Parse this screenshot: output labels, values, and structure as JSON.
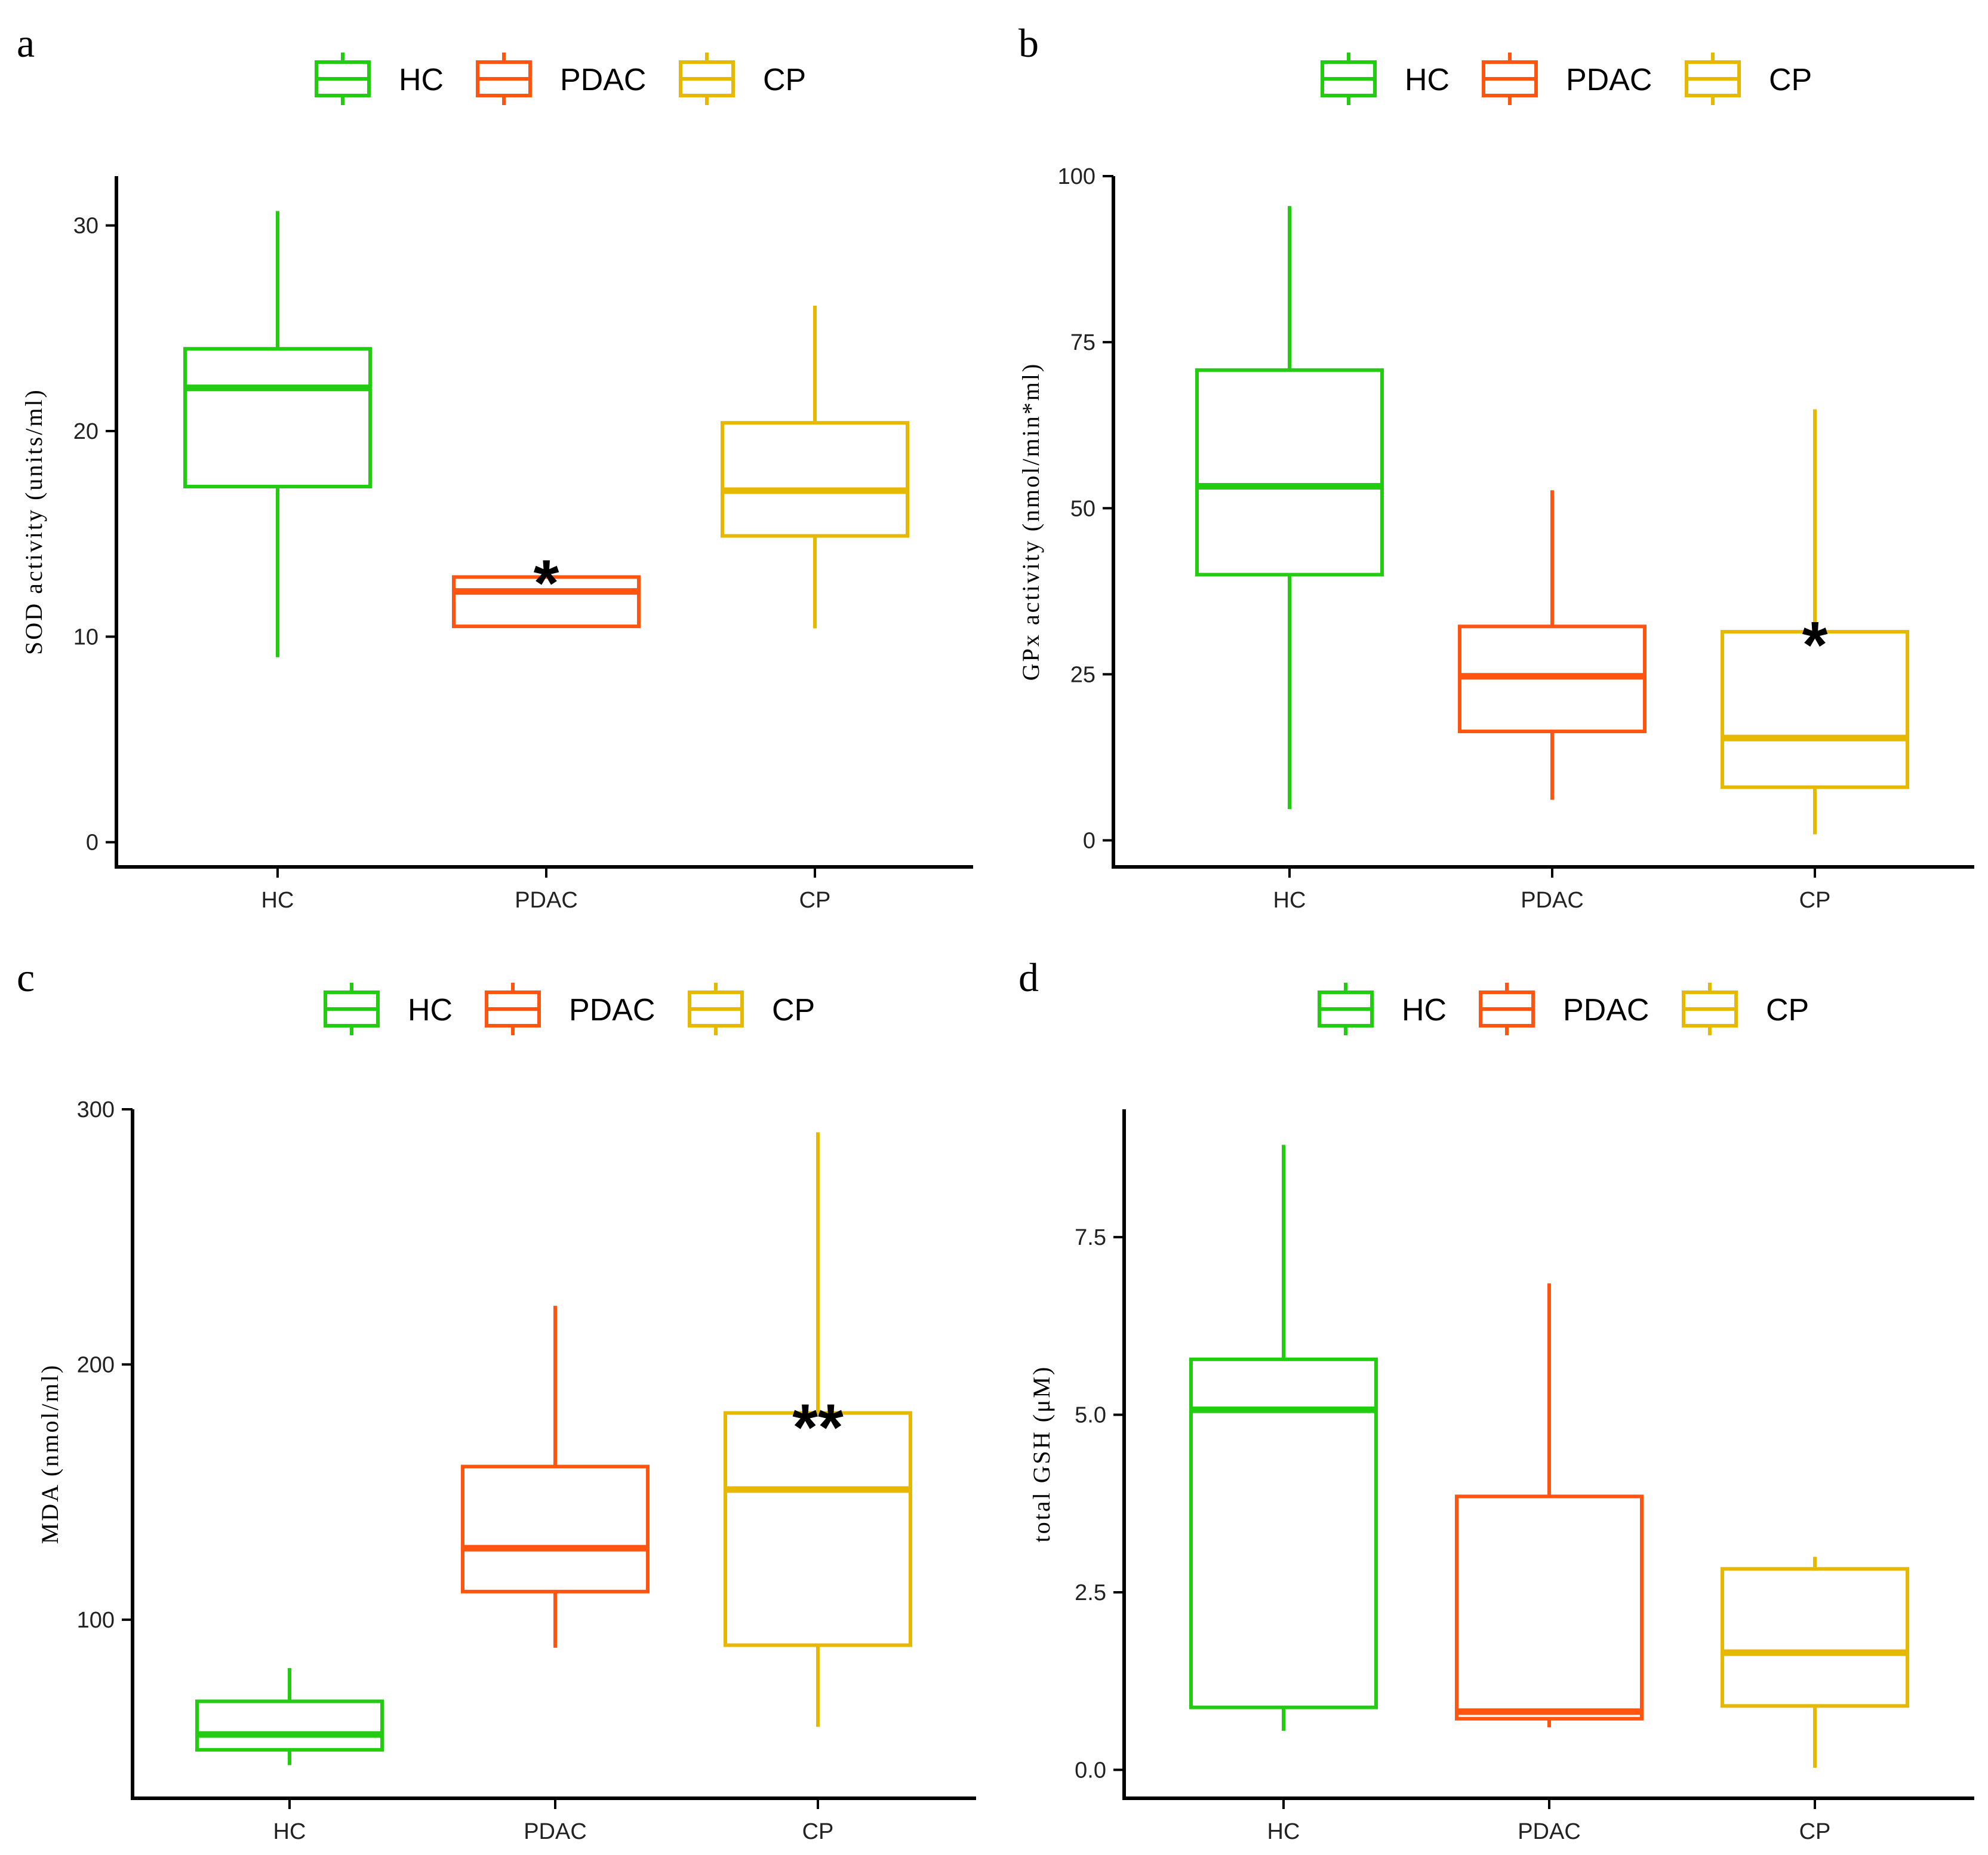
{
  "colors": {
    "HC": "#22CC11",
    "PDAC": "#FF5511",
    "CP": "#E6B800"
  },
  "chart_data": [
    {
      "type": "box",
      "panel": "a",
      "title": "",
      "xlabel": "",
      "ylabel": "SOD activity (units/ml)",
      "categories": [
        "HC",
        "PDAC",
        "CP"
      ],
      "legend": [
        "HC",
        "PDAC",
        "CP"
      ],
      "legend_position": "top",
      "ylim": [
        -1.2,
        32.4
      ],
      "yticks": [
        0,
        10,
        20,
        30
      ],
      "ytick_labels": [
        "0",
        "10",
        "20",
        "30"
      ],
      "boxes": [
        {
          "group": "HC",
          "min": 9.0,
          "q1": 17.3,
          "median": 22.1,
          "q3": 24.0,
          "max": 30.7
        },
        {
          "group": "PDAC",
          "min": 10.5,
          "q1": 10.5,
          "median": 12.2,
          "q3": 12.9,
          "max": 12.9
        },
        {
          "group": "CP",
          "min": 10.4,
          "q1": 14.9,
          "median": 17.1,
          "q3": 20.4,
          "max": 26.1
        }
      ],
      "annotations": [
        {
          "group": "PDAC",
          "text": "*",
          "y": 13.3
        }
      ]
    },
    {
      "type": "box",
      "panel": "b",
      "title": "",
      "xlabel": "",
      "ylabel": "GPx activity (nmol/min*ml)",
      "categories": [
        "HC",
        "PDAC",
        "CP"
      ],
      "legend": [
        "HC",
        "PDAC",
        "CP"
      ],
      "legend_position": "top",
      "ylim": [
        -4,
        100
      ],
      "yticks": [
        0,
        25,
        50,
        75,
        100
      ],
      "ytick_labels": [
        "0",
        "25",
        "50",
        "75",
        "100"
      ],
      "boxes": [
        {
          "group": "HC",
          "min": 4.7,
          "q1": 40.0,
          "median": 53.3,
          "q3": 70.8,
          "max": 95.5
        },
        {
          "group": "PDAC",
          "min": 6.1,
          "q1": 16.4,
          "median": 24.7,
          "q3": 32.2,
          "max": 52.7
        },
        {
          "group": "CP",
          "min": 0.9,
          "q1": 8.0,
          "median": 15.4,
          "q3": 31.4,
          "max": 64.9
        }
      ],
      "annotations": [
        {
          "group": "CP",
          "text": "*",
          "y": 31.6
        }
      ]
    },
    {
      "type": "box",
      "panel": "c",
      "title": "",
      "xlabel": "",
      "ylabel": "MDA (nmol/ml)",
      "categories": [
        "HC",
        "PDAC",
        "CP"
      ],
      "legend": [
        "HC",
        "PDAC",
        "CP"
      ],
      "legend_position": "top",
      "ylim": [
        30,
        300
      ],
      "yticks": [
        100,
        200,
        300
      ],
      "ytick_labels": [
        "100",
        "200",
        "300"
      ],
      "boxes": [
        {
          "group": "HC",
          "min": 43,
          "q1": 49,
          "median": 55,
          "q3": 68,
          "max": 81
        },
        {
          "group": "PDAC",
          "min": 89,
          "q1": 111,
          "median": 128,
          "q3": 160,
          "max": 223
        },
        {
          "group": "CP",
          "min": 58,
          "q1": 90,
          "median": 151,
          "q3": 181,
          "max": 291
        }
      ],
      "annotations": [
        {
          "group": "CP",
          "text": "**",
          "y": 181
        }
      ]
    },
    {
      "type": "box",
      "panel": "d",
      "title": "",
      "xlabel": "",
      "ylabel": "total GSH (μM)",
      "categories": [
        "HC",
        "PDAC",
        "CP"
      ],
      "legend": [
        "HC",
        "PDAC",
        "CP"
      ],
      "legend_position": "top",
      "ylim": [
        -0.4,
        9.3
      ],
      "yticks": [
        0.0,
        2.5,
        5.0,
        7.5
      ],
      "ytick_labels": [
        "0.0",
        "2.5",
        "5.0",
        "7.5"
      ],
      "boxes": [
        {
          "group": "HC",
          "min": 0.55,
          "q1": 0.88,
          "median": 5.07,
          "q3": 5.78,
          "max": 8.8
        },
        {
          "group": "PDAC",
          "min": 0.6,
          "q1": 0.72,
          "median": 0.82,
          "q3": 3.85,
          "max": 6.85
        },
        {
          "group": "CP",
          "min": 0.03,
          "q1": 0.9,
          "median": 1.65,
          "q3": 2.83,
          "max": 3.0
        }
      ],
      "annotations": []
    }
  ]
}
